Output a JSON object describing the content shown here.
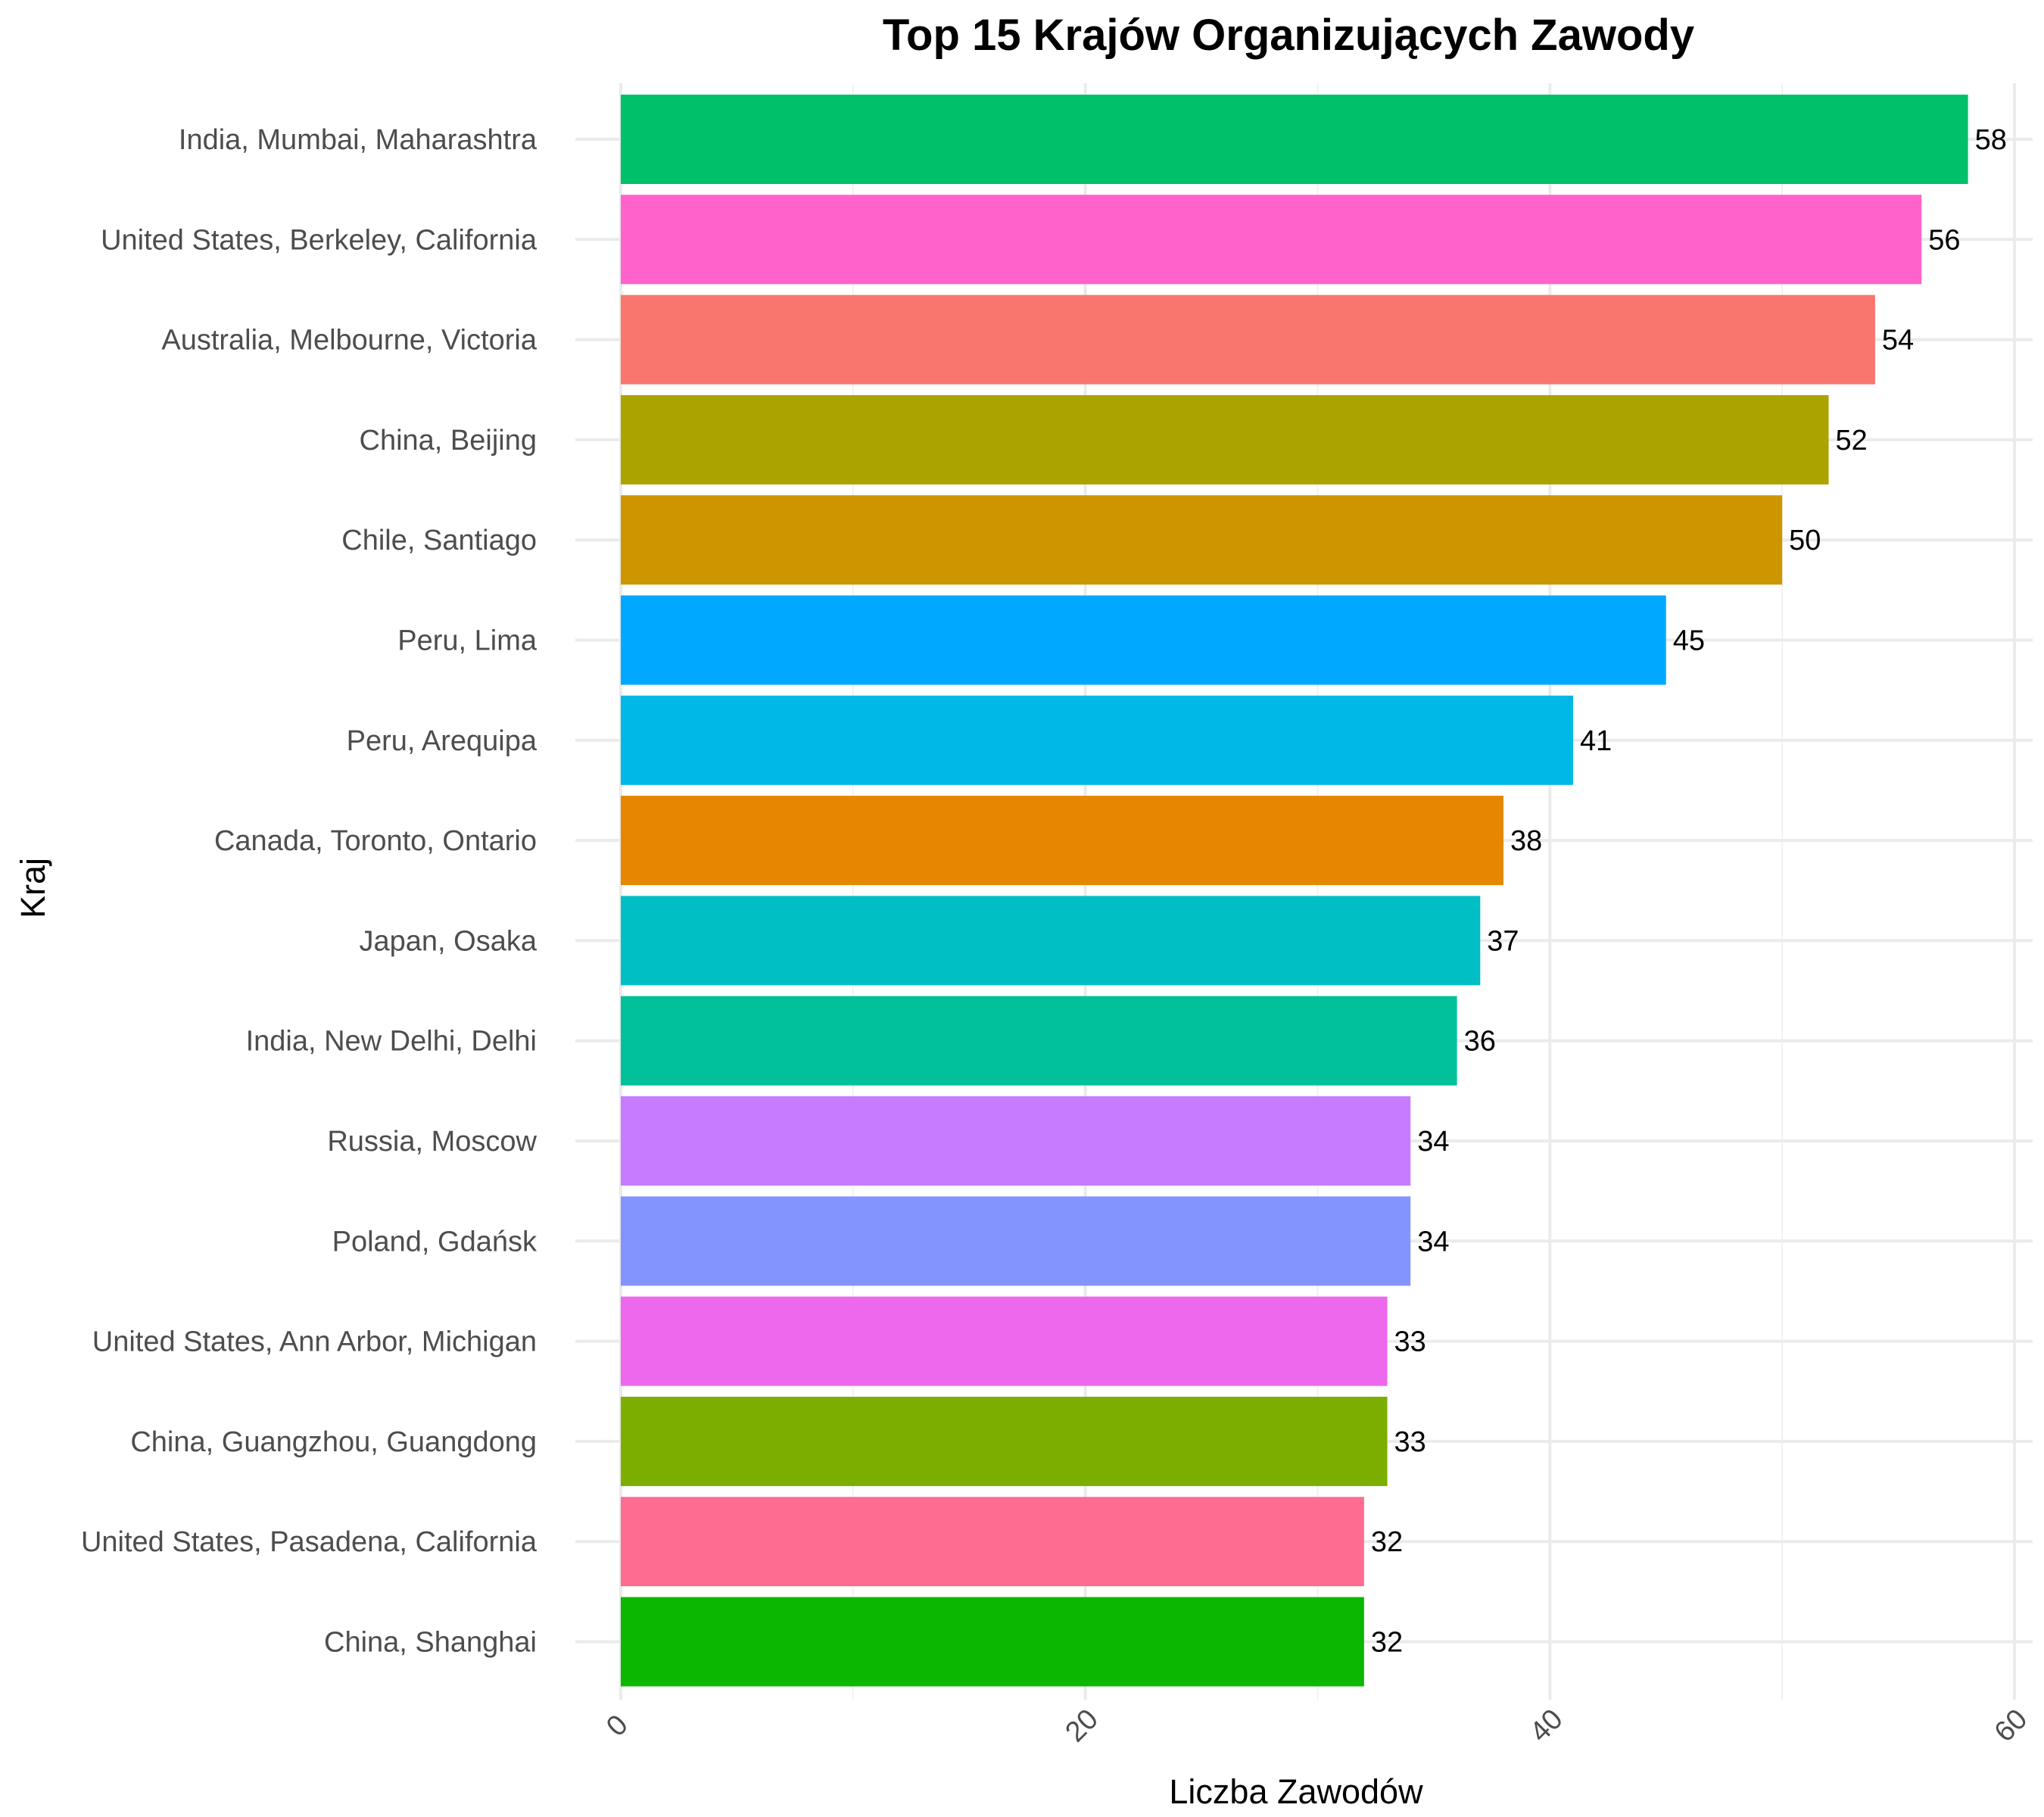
{
  "chart_data": {
    "type": "bar",
    "orientation": "horizontal",
    "title": "Top 15 Krajów Organizujących Zawody",
    "xlabel": "Liczba Zawodów",
    "ylabel": "Kraj",
    "xlim": [
      0,
      60
    ],
    "x_ticks": [
      "0",
      "20",
      "40",
      "60"
    ],
    "x_tick_values": [
      0,
      20,
      40,
      60
    ],
    "grid": true,
    "legend": "none",
    "categories": [
      "India, Mumbai, Maharashtra",
      "United States, Berkeley, California",
      "Australia, Melbourne, Victoria",
      "China, Beijing",
      "Chile, Santiago",
      "Peru, Lima",
      "Peru, Arequipa",
      "Canada, Toronto, Ontario",
      "Japan, Osaka",
      "India, New Delhi, Delhi",
      "Russia, Moscow",
      "Poland, Gdańsk",
      "United States, Ann Arbor, Michigan",
      "China, Guangzhou, Guangdong",
      "United States, Pasadena, California",
      "China, Shanghai"
    ],
    "values": [
      58,
      56,
      54,
      52,
      50,
      45,
      41,
      38,
      37,
      36,
      34,
      34,
      33,
      33,
      32,
      32
    ],
    "value_labels": [
      "58",
      "56",
      "54",
      "52",
      "50",
      "45",
      "41",
      "38",
      "37",
      "36",
      "34",
      "34",
      "33",
      "33",
      "32",
      "32"
    ],
    "colors": [
      "#00C06A",
      "#FF63CB",
      "#F8766D",
      "#ABA300",
      "#CD9600",
      "#00A9FF",
      "#00B8E7",
      "#E58700",
      "#00BFC4",
      "#00C19A",
      "#C77CFF",
      "#8494FF",
      "#ED68ED",
      "#7CAE00",
      "#FF6C91",
      "#0CB702"
    ]
  }
}
